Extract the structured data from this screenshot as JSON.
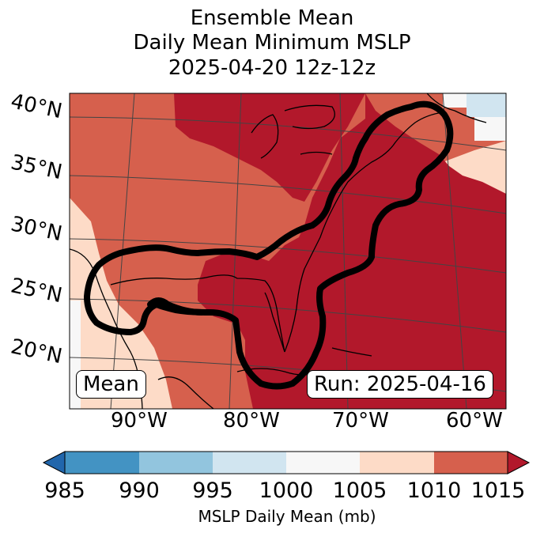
{
  "title": {
    "line1": "Ensemble Mean",
    "line2": "Daily Mean Minimum MSLP",
    "line3": "2025-04-20 12z-12z"
  },
  "map": {
    "lat_labels": [
      "40°N",
      "35°N",
      "30°N",
      "25°N",
      "20°N"
    ],
    "lon_labels": [
      "90°W",
      "80°W",
      "70°W",
      "60°W"
    ],
    "mean_label": "Mean",
    "run_label": "Run: 2025-04-16"
  },
  "colorbar": {
    "ticks": [
      "985",
      "990",
      "995",
      "1000",
      "1005",
      "1010",
      "1015"
    ],
    "label": "MSLP Daily Mean (mb)",
    "colors": [
      "#2166ac",
      "#4393c3",
      "#92c5de",
      "#d1e5f0",
      "#f7f7f7",
      "#fddbc7",
      "#d6604d",
      "#b2182b"
    ]
  }
}
